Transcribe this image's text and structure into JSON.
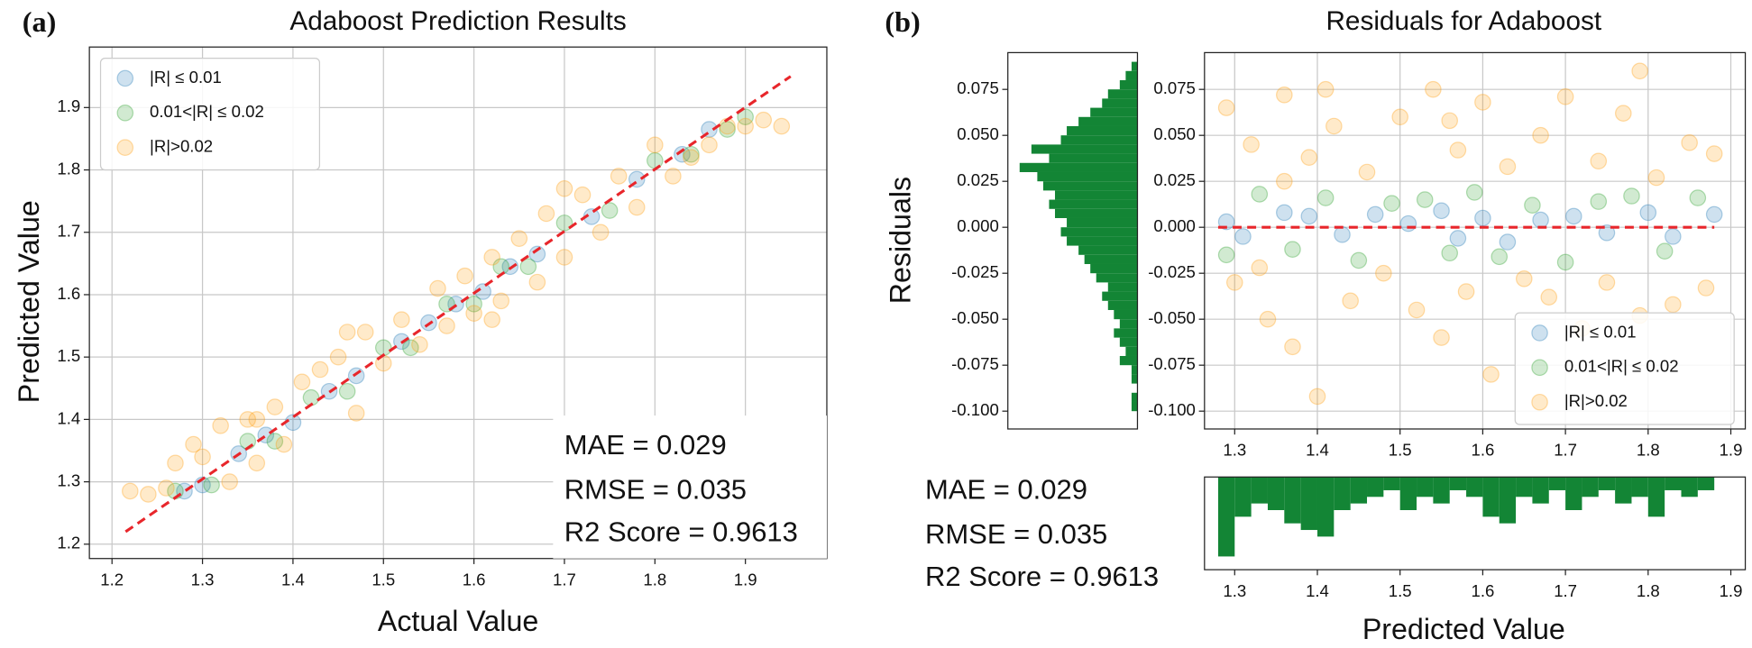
{
  "chart_data": [
    {
      "type": "scatter",
      "panel_label": "(a)",
      "title": "Adaboost Prediction Results",
      "x_label": "Actual Value",
      "y_label": "Predicted Value",
      "xlim": [
        1.175,
        1.99
      ],
      "ylim": [
        1.177,
        1.997
      ],
      "xticks": [
        1.2,
        1.3,
        1.4,
        1.5,
        1.6,
        1.7,
        1.8,
        1.9
      ],
      "yticks": [
        1.2,
        1.3,
        1.4,
        1.5,
        1.6,
        1.7,
        1.8,
        1.9
      ],
      "grid": true,
      "legend": "upper left",
      "series": [
        {
          "name": "|R| ≤ 0.01",
          "color": "#1f77b4",
          "x": [
            1.28,
            1.3,
            1.34,
            1.37,
            1.4,
            1.44,
            1.47,
            1.52,
            1.55,
            1.58,
            1.61,
            1.64,
            1.67,
            1.73,
            1.78,
            1.83,
            1.86
          ],
          "y": [
            1.285,
            1.295,
            1.345,
            1.375,
            1.395,
            1.445,
            1.47,
            1.525,
            1.555,
            1.585,
            1.605,
            1.645,
            1.665,
            1.725,
            1.785,
            1.825,
            1.865
          ]
        },
        {
          "name": "0.01<|R| ≤ 0.02",
          "color": "#2ca02c",
          "x": [
            1.27,
            1.31,
            1.35,
            1.38,
            1.42,
            1.46,
            1.5,
            1.53,
            1.57,
            1.6,
            1.63,
            1.66,
            1.7,
            1.75,
            1.8,
            1.84,
            1.88,
            1.9
          ],
          "y": [
            1.285,
            1.295,
            1.365,
            1.365,
            1.435,
            1.445,
            1.515,
            1.515,
            1.585,
            1.585,
            1.645,
            1.645,
            1.715,
            1.735,
            1.815,
            1.825,
            1.865,
            1.885
          ]
        },
        {
          "name": "|R|>0.02",
          "color": "#ff9f0e",
          "x": [
            1.22,
            1.24,
            1.26,
            1.27,
            1.29,
            1.3,
            1.32,
            1.33,
            1.35,
            1.36,
            1.38,
            1.39,
            1.41,
            1.43,
            1.45,
            1.46,
            1.47,
            1.48,
            1.5,
            1.52,
            1.54,
            1.56,
            1.57,
            1.59,
            1.6,
            1.62,
            1.63,
            1.65,
            1.67,
            1.68,
            1.7,
            1.72,
            1.74,
            1.76,
            1.78,
            1.8,
            1.82,
            1.84,
            1.86,
            1.88,
            1.9,
            1.92,
            1.94,
            1.7,
            1.62,
            1.36
          ],
          "y": [
            1.285,
            1.28,
            1.29,
            1.33,
            1.36,
            1.34,
            1.39,
            1.3,
            1.4,
            1.33,
            1.42,
            1.36,
            1.46,
            1.48,
            1.5,
            1.54,
            1.41,
            1.54,
            1.49,
            1.56,
            1.52,
            1.61,
            1.55,
            1.63,
            1.57,
            1.66,
            1.59,
            1.69,
            1.62,
            1.73,
            1.66,
            1.76,
            1.7,
            1.79,
            1.74,
            1.84,
            1.79,
            1.82,
            1.84,
            1.87,
            1.87,
            1.88,
            1.87,
            1.77,
            1.56,
            1.4
          ]
        }
      ],
      "reference_line": {
        "x": [
          1.215,
          1.95
        ],
        "y": [
          1.22,
          1.95
        ],
        "color": "#e8262b"
      },
      "annotations": [
        "MAE = 0.029",
        "RMSE = 0.035",
        "R2 Score = 0.9613"
      ]
    },
    {
      "type": "scatter",
      "panel_label": "(b)",
      "title": "Residuals for Adaboost",
      "x_label": "Predicted Value",
      "y_label": "Residuals",
      "xlim": [
        1.2635,
        1.9175
      ],
      "ylim": [
        -0.1097,
        0.095
      ],
      "xticks": [
        1.3,
        1.4,
        1.5,
        1.6,
        1.7,
        1.8,
        1.9
      ],
      "yticks": [
        {
          "value": 0.075,
          "label": "0.075"
        },
        {
          "value": 0.05,
          "label": "0.050"
        },
        {
          "value": 0.025,
          "label": "0.025"
        },
        {
          "value": 0,
          "label": "0.000"
        },
        {
          "value": -0.025,
          "label": "-0.025"
        },
        {
          "value": -0.05,
          "label": "-0.050"
        },
        {
          "value": -0.075,
          "label": "-0.075"
        },
        {
          "value": -0.1,
          "label": "-0.100"
        }
      ],
      "grid": true,
      "legend": "lower right",
      "series": [
        {
          "name": "|R| ≤ 0.01",
          "color": "#1f77b4",
          "x": [
            1.29,
            1.31,
            1.36,
            1.39,
            1.43,
            1.47,
            1.51,
            1.55,
            1.57,
            1.6,
            1.63,
            1.67,
            1.71,
            1.75,
            1.8,
            1.83,
            1.88
          ],
          "y": [
            0.003,
            -0.005,
            0.008,
            0.006,
            -0.004,
            0.007,
            0.002,
            0.009,
            -0.006,
            0.005,
            -0.008,
            0.004,
            0.006,
            -0.003,
            0.008,
            -0.005,
            0.007
          ]
        },
        {
          "name": "0.01<|R| ≤ 0.02",
          "color": "#2ca02c",
          "x": [
            1.29,
            1.33,
            1.37,
            1.41,
            1.45,
            1.49,
            1.53,
            1.56,
            1.59,
            1.62,
            1.66,
            1.7,
            1.74,
            1.78,
            1.82,
            1.86
          ],
          "y": [
            -0.015,
            0.018,
            -0.012,
            0.016,
            -0.018,
            0.013,
            0.015,
            -0.014,
            0.019,
            -0.016,
            0.012,
            -0.019,
            0.014,
            0.017,
            -0.013,
            0.016
          ]
        },
        {
          "name": "|R|>0.02",
          "color": "#ff9f0e",
          "x": [
            1.29,
            1.3,
            1.32,
            1.34,
            1.36,
            1.37,
            1.39,
            1.4,
            1.42,
            1.44,
            1.46,
            1.48,
            1.5,
            1.52,
            1.54,
            1.55,
            1.57,
            1.58,
            1.6,
            1.61,
            1.63,
            1.65,
            1.67,
            1.68,
            1.7,
            1.72,
            1.74,
            1.75,
            1.77,
            1.79,
            1.81,
            1.83,
            1.85,
            1.87,
            1.88,
            1.41,
            1.56,
            1.36,
            1.79,
            1.33
          ],
          "y": [
            0.065,
            -0.03,
            0.045,
            -0.05,
            0.072,
            -0.065,
            0.038,
            -0.092,
            0.055,
            -0.04,
            0.03,
            -0.025,
            0.06,
            -0.045,
            0.075,
            -0.06,
            0.042,
            -0.035,
            0.068,
            -0.08,
            0.033,
            -0.028,
            0.05,
            -0.038,
            0.071,
            -0.055,
            0.036,
            -0.03,
            0.062,
            -0.048,
            0.027,
            -0.042,
            0.046,
            -0.033,
            0.04,
            0.075,
            0.058,
            0.025,
            0.085,
            -0.022
          ]
        }
      ],
      "reference_line": {
        "x": [
          1.28,
          1.88
        ],
        "y": [
          0,
          0
        ],
        "color": "#e8262b"
      },
      "annotations": [
        "MAE = 0.029",
        "RMSE = 0.035",
        "R2 Score = 0.9613"
      ]
    },
    {
      "type": "histogram",
      "orientation": "horizontal",
      "color": "#138535",
      "xlim": [
        0,
        22
      ],
      "x_inverted": true,
      "ylim": [
        -0.1097,
        0.095
      ],
      "yticks": [
        {
          "value": 0.075,
          "label": "0.075"
        },
        {
          "value": 0.05,
          "label": "0.050"
        },
        {
          "value": 0.025,
          "label": "0.025"
        },
        {
          "value": 0,
          "label": "0.000"
        },
        {
          "value": -0.025,
          "label": "-0.025"
        },
        {
          "value": -0.05,
          "label": "-0.050"
        },
        {
          "value": -0.075,
          "label": "-0.075"
        },
        {
          "value": -0.1,
          "label": "-0.100"
        }
      ],
      "bins": [
        -0.1,
        -0.095,
        -0.09,
        -0.085,
        -0.08,
        -0.075,
        -0.07,
        -0.065,
        -0.06,
        -0.055,
        -0.05,
        -0.045,
        -0.04,
        -0.035,
        -0.03,
        -0.025,
        -0.02,
        -0.015,
        -0.01,
        -0.005,
        0,
        0.005,
        0.01,
        0.015,
        0.02,
        0.025,
        0.03,
        0.035,
        0.04,
        0.045,
        0.05,
        0.055,
        0.06,
        0.065,
        0.07,
        0.075,
        0.08,
        0.085,
        0.09
      ],
      "values": [
        1,
        1,
        0,
        1,
        1,
        3,
        2,
        3,
        4,
        3,
        4,
        5,
        6,
        5,
        7,
        8,
        9,
        10,
        12,
        13,
        12,
        14,
        15,
        14,
        16,
        17,
        20,
        15,
        18,
        13,
        12,
        10,
        8,
        6,
        5,
        3,
        2,
        1
      ]
    },
    {
      "type": "histogram",
      "orientation": "vertical",
      "color": "#138535",
      "xlim": [
        1.2635,
        1.9175
      ],
      "ylim": [
        0,
        14
      ],
      "y_inverted": true,
      "xticks": [
        1.3,
        1.4,
        1.5,
        1.6,
        1.7,
        1.8,
        1.9
      ],
      "bins": [
        1.28,
        1.3,
        1.32,
        1.34,
        1.36,
        1.38,
        1.4,
        1.42,
        1.44,
        1.46,
        1.48,
        1.5,
        1.52,
        1.54,
        1.56,
        1.58,
        1.6,
        1.62,
        1.64,
        1.66,
        1.68,
        1.7,
        1.72,
        1.74,
        1.76,
        1.78,
        1.8,
        1.82,
        1.84,
        1.86,
        1.88
      ],
      "values": [
        12,
        6,
        4,
        5,
        7,
        8,
        9,
        5,
        4,
        3,
        2,
        5,
        3,
        4,
        2,
        3,
        6,
        7,
        3,
        4,
        2,
        5,
        3,
        2,
        4,
        3,
        6,
        2,
        3,
        2
      ]
    }
  ]
}
